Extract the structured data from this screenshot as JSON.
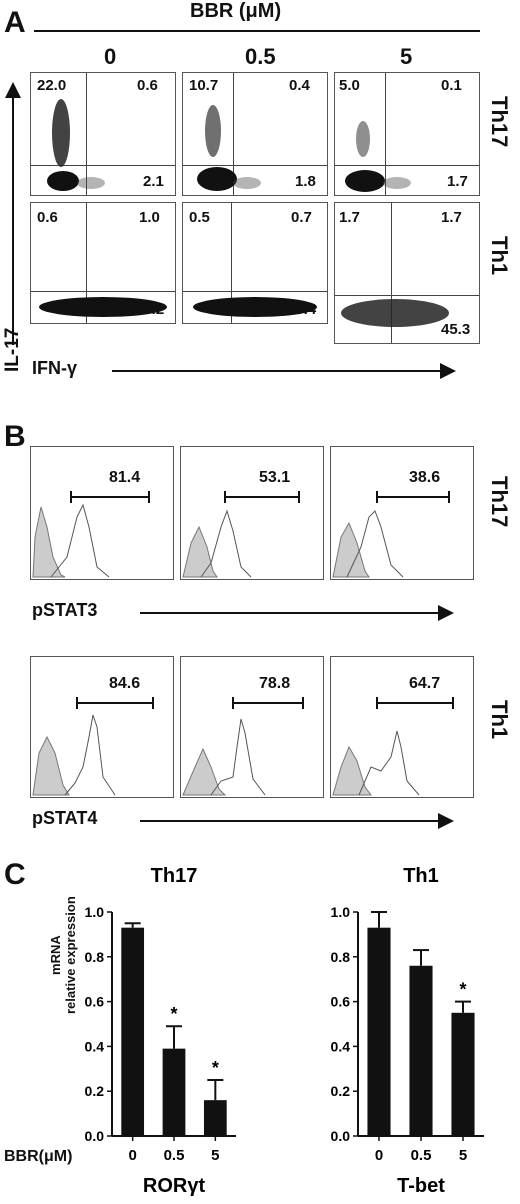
{
  "panel_a": {
    "label": "A",
    "header": "BBR (μM)",
    "doses": [
      "0",
      "0.5",
      "5"
    ],
    "y_axis": "IL-17",
    "x_axis": "IFN-γ",
    "rows": [
      {
        "name": "Th17",
        "plots": [
          {
            "ul": "22.0",
            "ur": "0.6",
            "lr": "2.1"
          },
          {
            "ul": "10.7",
            "ur": "0.4",
            "lr": "1.8"
          },
          {
            "ul": "5.0",
            "ur": "0.1",
            "lr": "1.7"
          }
        ]
      },
      {
        "name": "Th1",
        "plots": [
          {
            "ul": "0.6",
            "ur": "1.0",
            "lr": "63.2"
          },
          {
            "ul": "0.5",
            "ur": "0.7",
            "lr": "56.4"
          },
          {
            "ul": "1.7",
            "ur": "1.7",
            "lr": "45.3"
          }
        ]
      }
    ]
  },
  "panel_b": {
    "label": "B",
    "rows": [
      {
        "name": "Th17",
        "marker": "pSTAT3",
        "values": [
          "81.4",
          "53.1",
          "38.6"
        ]
      },
      {
        "name": "Th1",
        "marker": "pSTAT4",
        "values": [
          "84.6",
          "78.8",
          "64.7"
        ]
      }
    ]
  },
  "panel_c": {
    "label": "C",
    "ylabel_line1": "mRNA",
    "ylabel_line2": "relative expression",
    "dose_label": "BBR(μM)"
  },
  "chart_data": [
    {
      "type": "bar",
      "title": "Th17",
      "xlabel": "RORγt",
      "ylabel": "mRNA relative expression",
      "categories": [
        "0",
        "0.5",
        "5"
      ],
      "values": [
        0.93,
        0.39,
        0.16
      ],
      "errors": [
        0.02,
        0.1,
        0.09
      ],
      "significance": [
        "",
        "*",
        "*"
      ],
      "ylim": [
        0,
        1.0
      ],
      "yticks": [
        "0.0",
        "0.2",
        "0.4",
        "0.6",
        "0.8",
        "1.0"
      ]
    },
    {
      "type": "bar",
      "title": "Th1",
      "xlabel": "T-bet",
      "ylabel": "",
      "categories": [
        "0",
        "0.5",
        "5"
      ],
      "values": [
        0.93,
        0.76,
        0.55
      ],
      "errors": [
        0.07,
        0.07,
        0.05
      ],
      "significance": [
        "",
        "",
        "*"
      ],
      "ylim": [
        0,
        1.0
      ],
      "yticks": [
        "0.0",
        "0.2",
        "0.4",
        "0.6",
        "0.8",
        "1.0"
      ]
    }
  ]
}
